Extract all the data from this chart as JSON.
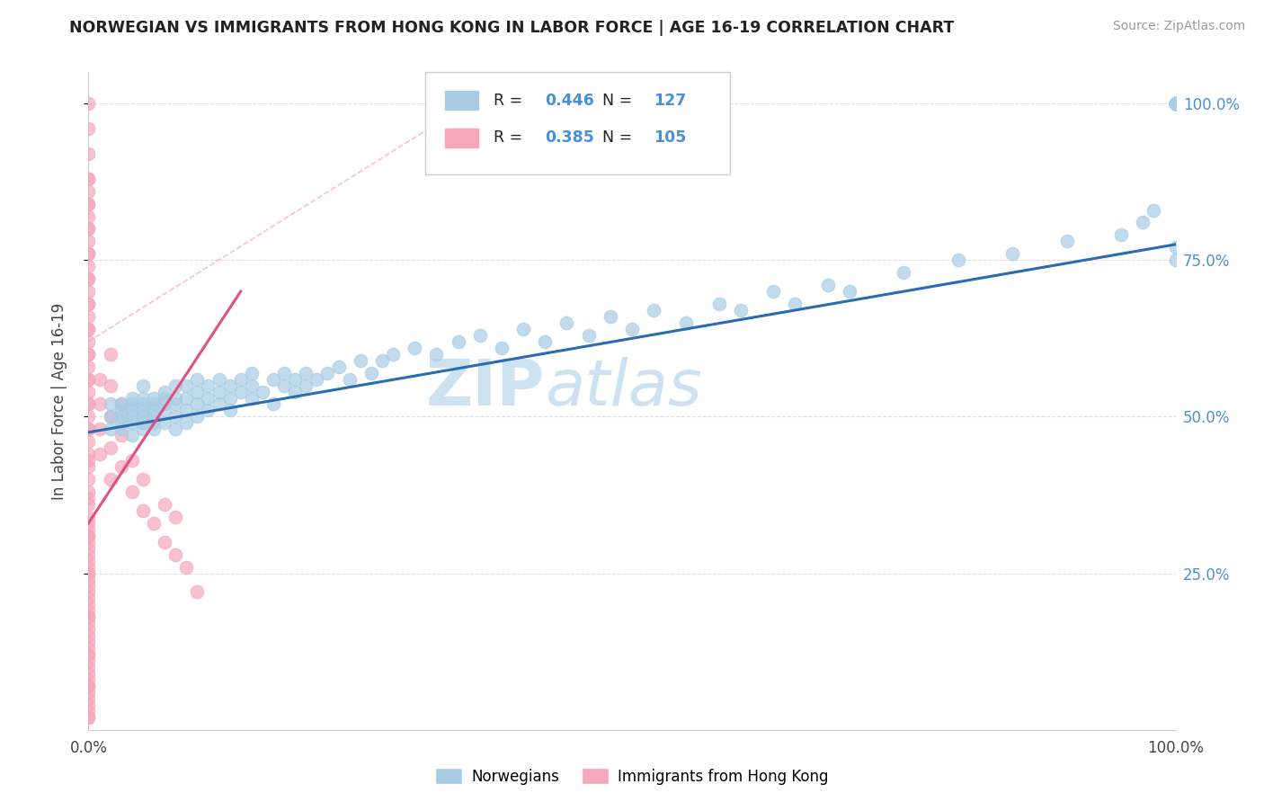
{
  "title": "NORWEGIAN VS IMMIGRANTS FROM HONG KONG IN LABOR FORCE | AGE 16-19 CORRELATION CHART",
  "source": "Source: ZipAtlas.com",
  "ylabel": "In Labor Force | Age 16-19",
  "legend_label_blue": "Norwegians",
  "legend_label_pink": "Immigrants from Hong Kong",
  "R_blue": "0.446",
  "N_blue": "127",
  "R_pink": "0.385",
  "N_pink": "105",
  "blue_color": "#a8cce4",
  "pink_color": "#f4a7b9",
  "blue_line_color": "#2b6cb0",
  "pink_line_color": "#e05080",
  "pink_dash_color": "#f4a7b9",
  "background_color": "#ffffff",
  "grid_color": "#e0e0e0",
  "title_color": "#222222",
  "stat_color": "#4a90d9",
  "label_color": "#444444",
  "right_tick_color": "#4a90d9",
  "watermark_color": "#ddeeff",
  "xlim": [
    0.0,
    1.0
  ],
  "ylim": [
    0.0,
    1.05
  ],
  "blue_x": [
    0.02,
    0.02,
    0.02,
    0.03,
    0.03,
    0.03,
    0.03,
    0.03,
    0.04,
    0.04,
    0.04,
    0.04,
    0.04,
    0.04,
    0.05,
    0.05,
    0.05,
    0.05,
    0.05,
    0.05,
    0.05,
    0.06,
    0.06,
    0.06,
    0.06,
    0.06,
    0.06,
    0.07,
    0.07,
    0.07,
    0.07,
    0.07,
    0.08,
    0.08,
    0.08,
    0.08,
    0.08,
    0.09,
    0.09,
    0.09,
    0.09,
    0.1,
    0.1,
    0.1,
    0.1,
    0.11,
    0.11,
    0.11,
    0.12,
    0.12,
    0.12,
    0.13,
    0.13,
    0.13,
    0.14,
    0.14,
    0.15,
    0.15,
    0.15,
    0.16,
    0.17,
    0.17,
    0.18,
    0.18,
    0.19,
    0.19,
    0.2,
    0.2,
    0.21,
    0.22,
    0.23,
    0.24,
    0.25,
    0.26,
    0.27,
    0.28,
    0.3,
    0.32,
    0.34,
    0.36,
    0.38,
    0.4,
    0.42,
    0.44,
    0.46,
    0.48,
    0.5,
    0.52,
    0.55,
    0.58,
    0.6,
    0.63,
    0.65,
    0.68,
    0.7,
    0.75,
    0.8,
    0.85,
    0.9,
    0.95,
    0.97,
    0.98,
    1.0,
    1.0,
    1.0,
    1.0,
    1.0,
    1.0,
    1.0,
    1.0,
    1.0,
    1.0,
    1.0,
    1.0,
    1.0,
    1.0,
    1.0
  ],
  "blue_y": [
    0.5,
    0.48,
    0.52,
    0.49,
    0.51,
    0.5,
    0.52,
    0.48,
    0.5,
    0.52,
    0.49,
    0.51,
    0.53,
    0.47,
    0.5,
    0.52,
    0.48,
    0.51,
    0.53,
    0.49,
    0.55,
    0.5,
    0.52,
    0.48,
    0.51,
    0.53,
    0.49,
    0.51,
    0.53,
    0.49,
    0.52,
    0.54,
    0.5,
    0.52,
    0.48,
    0.53,
    0.55,
    0.51,
    0.53,
    0.49,
    0.55,
    0.52,
    0.54,
    0.5,
    0.56,
    0.53,
    0.51,
    0.55,
    0.52,
    0.54,
    0.56,
    0.53,
    0.55,
    0.51,
    0.54,
    0.56,
    0.53,
    0.55,
    0.57,
    0.54,
    0.56,
    0.52,
    0.55,
    0.57,
    0.54,
    0.56,
    0.55,
    0.57,
    0.56,
    0.57,
    0.58,
    0.56,
    0.59,
    0.57,
    0.59,
    0.6,
    0.61,
    0.6,
    0.62,
    0.63,
    0.61,
    0.64,
    0.62,
    0.65,
    0.63,
    0.66,
    0.64,
    0.67,
    0.65,
    0.68,
    0.67,
    0.7,
    0.68,
    0.71,
    0.7,
    0.73,
    0.75,
    0.76,
    0.78,
    0.79,
    0.81,
    0.83,
    1.0,
    1.0,
    1.0,
    1.0,
    1.0,
    1.0,
    1.0,
    1.0,
    1.0,
    1.0,
    1.0,
    1.0,
    1.0,
    0.75,
    0.77
  ],
  "pink_x": [
    0.0,
    0.0,
    0.0,
    0.0,
    0.0,
    0.0,
    0.0,
    0.0,
    0.0,
    0.0,
    0.0,
    0.0,
    0.0,
    0.0,
    0.0,
    0.0,
    0.0,
    0.0,
    0.0,
    0.0,
    0.0,
    0.0,
    0.0,
    0.0,
    0.0,
    0.0,
    0.0,
    0.0,
    0.0,
    0.0,
    0.0,
    0.0,
    0.0,
    0.0,
    0.0,
    0.0,
    0.0,
    0.0,
    0.0,
    0.0,
    0.0,
    0.0,
    0.0,
    0.0,
    0.0,
    0.0,
    0.0,
    0.0,
    0.0,
    0.0,
    0.0,
    0.0,
    0.0,
    0.0,
    0.0,
    0.0,
    0.0,
    0.0,
    0.0,
    0.0,
    0.01,
    0.01,
    0.01,
    0.01,
    0.02,
    0.02,
    0.02,
    0.02,
    0.02,
    0.03,
    0.03,
    0.03,
    0.04,
    0.04,
    0.05,
    0.05,
    0.06,
    0.07,
    0.07,
    0.08,
    0.08,
    0.09,
    0.1,
    0.0,
    0.0,
    0.0,
    0.0,
    0.0,
    0.0,
    0.0,
    0.0,
    0.0,
    0.0,
    0.0,
    0.0,
    0.0,
    0.0,
    0.0,
    0.0,
    0.0,
    0.0,
    0.0,
    0.0,
    0.0,
    0.0
  ],
  "pink_y": [
    0.04,
    0.06,
    0.08,
    0.1,
    0.12,
    0.14,
    0.16,
    0.18,
    0.2,
    0.22,
    0.24,
    0.26,
    0.28,
    0.3,
    0.32,
    0.34,
    0.36,
    0.38,
    0.4,
    0.42,
    0.44,
    0.46,
    0.48,
    0.5,
    0.52,
    0.54,
    0.56,
    0.58,
    0.6,
    0.62,
    0.64,
    0.66,
    0.68,
    0.7,
    0.72,
    0.74,
    0.76,
    0.78,
    0.8,
    0.82,
    0.84,
    0.86,
    0.88,
    0.02,
    0.03,
    0.05,
    0.07,
    0.09,
    0.11,
    0.13,
    0.15,
    0.17,
    0.19,
    0.21,
    0.23,
    0.25,
    0.27,
    0.29,
    0.31,
    0.33,
    0.44,
    0.48,
    0.52,
    0.56,
    0.4,
    0.45,
    0.5,
    0.55,
    0.6,
    0.42,
    0.47,
    0.52,
    0.38,
    0.43,
    0.35,
    0.4,
    0.33,
    0.3,
    0.36,
    0.28,
    0.34,
    0.26,
    0.22,
    0.68,
    0.72,
    0.76,
    0.8,
    0.84,
    0.88,
    0.92,
    0.96,
    1.0,
    0.64,
    0.6,
    0.56,
    0.52,
    0.48,
    0.43,
    0.37,
    0.31,
    0.25,
    0.18,
    0.12,
    0.07,
    0.02
  ],
  "blue_line": [
    [
      0.0,
      1.0
    ],
    [
      0.475,
      0.775
    ]
  ],
  "pink_line": [
    [
      0.0,
      0.14
    ],
    [
      0.33,
      0.7
    ]
  ],
  "pink_dash_line": [
    [
      0.0,
      0.35
    ],
    [
      0.62,
      1.0
    ]
  ]
}
